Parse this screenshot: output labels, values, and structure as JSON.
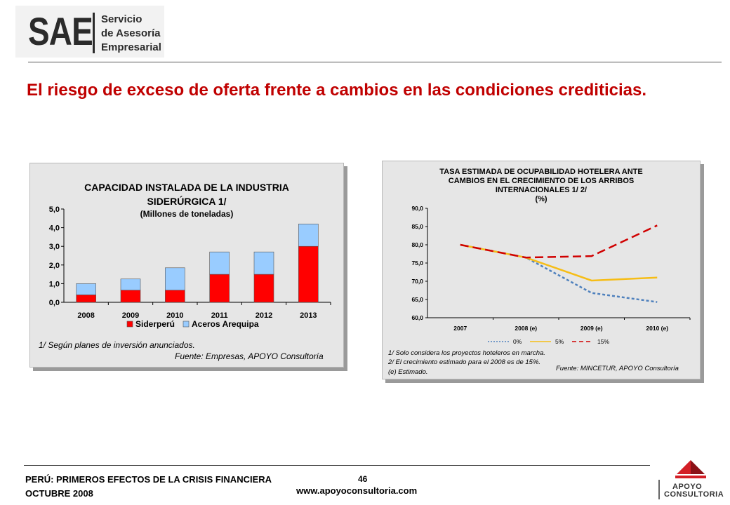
{
  "header": {
    "logo_mark": "SAE",
    "logo_lines": [
      "Servicio",
      "de Asesoría",
      "Empresarial"
    ]
  },
  "slide": {
    "title": "El riesgo de exceso de oferta frente a cambios en las condiciones crediticias."
  },
  "colors": {
    "title_red": "#c00000",
    "siderperu": "#ff0000",
    "aceros": "#99ccff",
    "s0": "#4f81bd",
    "s5": "#f6bd16",
    "s15": "#d00000"
  },
  "chart_data": [
    {
      "type": "bar",
      "stacked": true,
      "title_lines": [
        "CAPACIDAD INSTALADA DE LA INDUSTRIA",
        "SIDERÚRGICA 1/",
        "(Millones de toneladas)"
      ],
      "categories": [
        "2008",
        "2009",
        "2010",
        "2011",
        "2012",
        "2013"
      ],
      "series": [
        {
          "name": "Siderperú",
          "values": [
            0.4,
            0.65,
            0.65,
            1.5,
            1.5,
            3.0
          ]
        },
        {
          "name": "Aceros Arequipa",
          "values": [
            0.6,
            0.6,
            1.2,
            1.2,
            1.2,
            1.2
          ]
        }
      ],
      "ylim": [
        0,
        5
      ],
      "yticks": [
        "0,0",
        "1,0",
        "2,0",
        "3,0",
        "4,0",
        "5,0"
      ],
      "legend_position": "bottom",
      "grid": false,
      "notes": [
        "1/ Según planes de inversión anunciados.",
        "Fuente: Empresas, APOYO Consultoría"
      ]
    },
    {
      "type": "line",
      "title_lines": [
        "TASA ESTIMADA DE OCUPABILIDAD HOTELERA ANTE",
        "CAMBIOS EN EL CRECIMIENTO DE LOS ARRIBOS",
        "INTERNACIONALES 1/ 2/",
        "(%)"
      ],
      "categories": [
        "2007",
        "2008 (e)",
        "2009 (e)",
        "2010 (e)"
      ],
      "series": [
        {
          "name": "0%",
          "values": [
            80.0,
            76.5,
            66.8,
            64.3
          ]
        },
        {
          "name": "5%",
          "values": [
            80.0,
            76.5,
            70.2,
            71.0
          ]
        },
        {
          "name": "15%",
          "values": [
            80.0,
            76.5,
            76.9,
            85.3
          ]
        }
      ],
      "ylim": [
        60,
        90
      ],
      "yticks": [
        "60,0",
        "65,0",
        "70,0",
        "75,0",
        "80,0",
        "85,0",
        "90,0"
      ],
      "legend_position": "bottom",
      "grid": false,
      "notes": [
        "1/ Solo considera los proyectos hoteleros en marcha.",
        "2/ El crecimiento estimado para el 2008 es de 15%.",
        "(e) Estimado."
      ],
      "source": "Fuente: MINCETUR, APOYO Consultoría"
    }
  ],
  "footer": {
    "line1": "PERÚ: PRIMEROS EFECTOS DE LA CRISIS FINANCIERA",
    "line2": "OCTUBRE 2008",
    "page": "46",
    "url": "www.apoyoconsultoria.com",
    "brand_lines": [
      "APOYO",
      "CONSULTORIA"
    ]
  }
}
